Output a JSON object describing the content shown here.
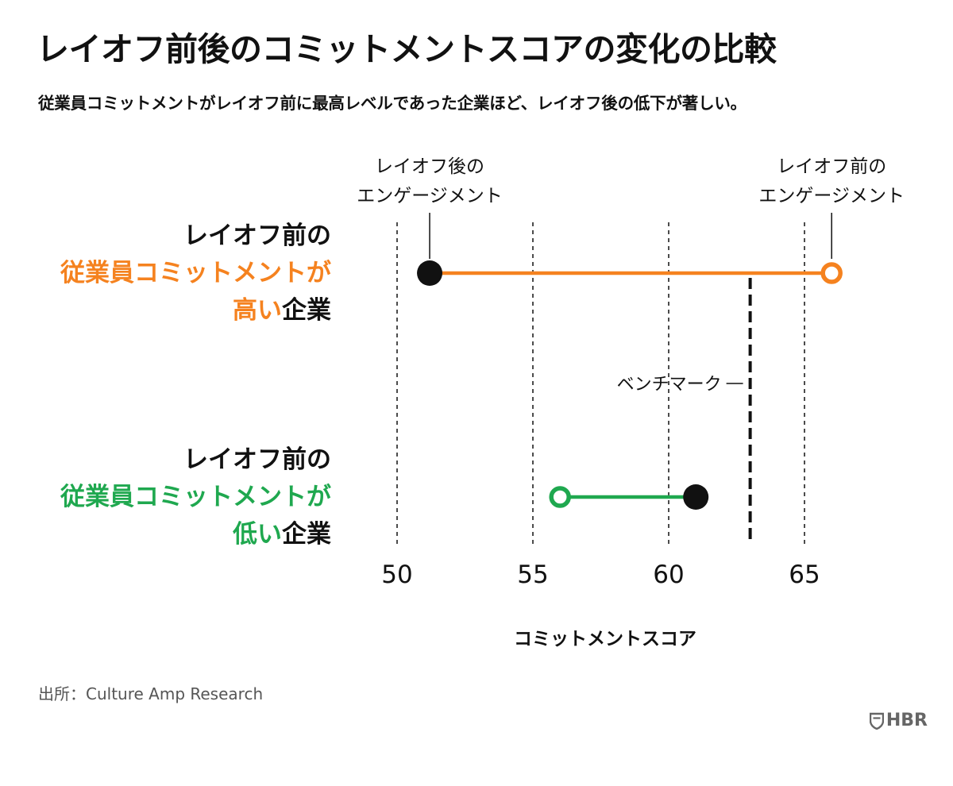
{
  "title": "レイオフ前後のコミットメントスコアの変化の比較",
  "subtitle": "従業員コミットメントがレイオフ前に最高レベルであった企業ほど、レイオフ後の低下が著しい。",
  "source": "出所：Culture Amp Research",
  "logo_text": "HBR",
  "colors": {
    "high": "#F5821F",
    "low": "#1FA84F",
    "ink": "#111111"
  },
  "chart_data": {
    "type": "dumbbell",
    "xlabel": "コミットメントスコア",
    "xlim": [
      50,
      67
    ],
    "ticks": [
      50,
      55,
      60,
      65
    ],
    "benchmark": {
      "value": 63,
      "label": "ベンチマーク"
    },
    "legend": {
      "after": [
        "レイオフ後の",
        "エンゲージメント"
      ],
      "before": [
        "レイオフ前の",
        "エンゲージメント"
      ]
    },
    "series": [
      {
        "key": "high",
        "label": {
          "line1": "レイオフ前の",
          "line2": "従業員コミットメントが",
          "line3_highlight": "高い",
          "line3_rest": "企業"
        },
        "before": 66,
        "after": 51.2
      },
      {
        "key": "low",
        "label": {
          "line1": "レイオフ前の",
          "line2": "従業員コミットメントが",
          "line3_highlight": "低い",
          "line3_rest": "企業"
        },
        "before": 56,
        "after": 61
      }
    ]
  }
}
